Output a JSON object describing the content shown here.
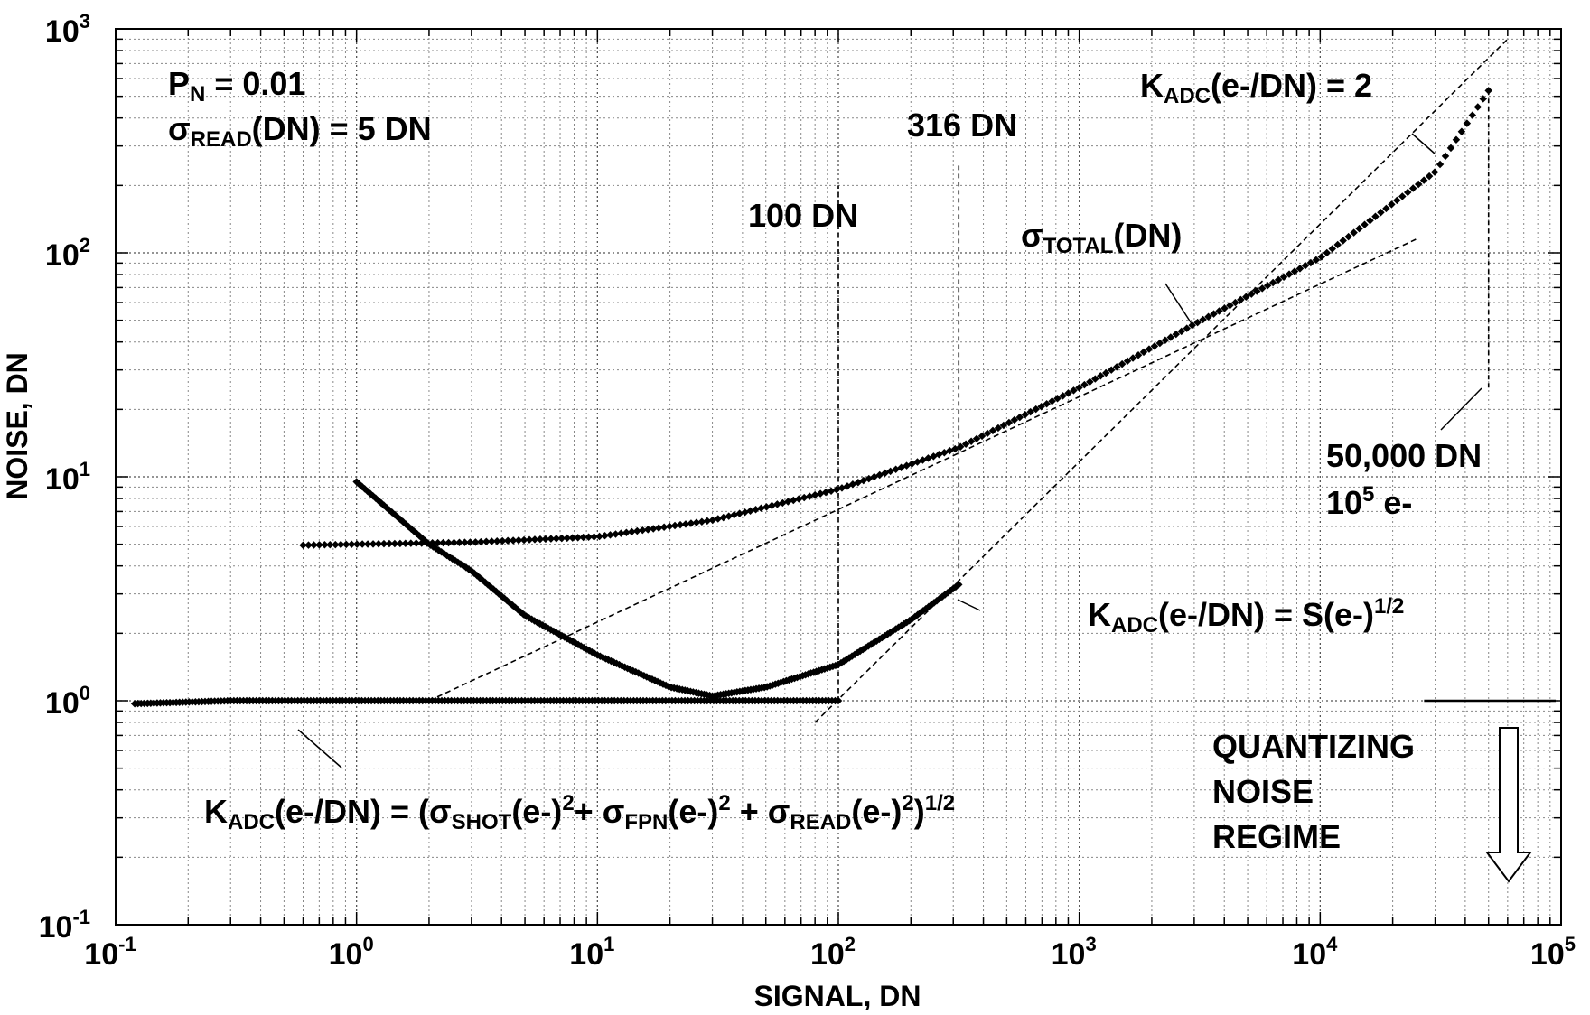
{
  "chart_data": {
    "type": "scatter",
    "title": "",
    "xlabel": "SIGNAL, DN",
    "ylabel": "NOISE, DN",
    "xscale": "log",
    "yscale": "log",
    "xlim": [
      0.1,
      100000
    ],
    "ylim": [
      0.1,
      1000
    ],
    "grid": true,
    "x_ticks": [
      {
        "base": "10",
        "exp": "-1"
      },
      {
        "base": "10",
        "exp": "0"
      },
      {
        "base": "10",
        "exp": "1"
      },
      {
        "base": "10",
        "exp": "2"
      },
      {
        "base": "10",
        "exp": "3"
      },
      {
        "base": "10",
        "exp": "4"
      },
      {
        "base": "10",
        "exp": "5"
      }
    ],
    "y_ticks": [
      {
        "base": "10",
        "exp": "-1"
      },
      {
        "base": "10",
        "exp": "0"
      },
      {
        "base": "10",
        "exp": "1"
      },
      {
        "base": "10",
        "exp": "2"
      },
      {
        "base": "10",
        "exp": "3"
      }
    ],
    "series": [
      {
        "kind": "points",
        "points": [
          [
            0.12,
            0.97
          ],
          [
            0.3,
            1.0
          ],
          [
            1,
            1.0
          ],
          [
            2,
            1.0
          ],
          [
            10,
            1.0
          ],
          [
            30,
            1.0
          ],
          [
            100,
            1.0
          ]
        ]
      },
      {
        "kind": "points",
        "points": [
          [
            0.6,
            4.95
          ],
          [
            1,
            5.0
          ],
          [
            3,
            5.1
          ],
          [
            10,
            5.4
          ],
          [
            30,
            6.4
          ],
          [
            100,
            8.8
          ],
          [
            316,
            13.5
          ],
          [
            1000,
            25
          ],
          [
            3000,
            48
          ],
          [
            10000,
            95
          ],
          [
            30000,
            230
          ],
          [
            50000,
            530
          ]
        ]
      },
      {
        "kind": "points",
        "points": [
          [
            1,
            9.5
          ],
          [
            2,
            5
          ],
          [
            3,
            3.8
          ],
          [
            5,
            2.4
          ],
          [
            10,
            1.6
          ],
          [
            20,
            1.15
          ],
          [
            30,
            1.05
          ],
          [
            50,
            1.15
          ],
          [
            100,
            1.45
          ],
          [
            200,
            2.3
          ],
          [
            316,
            3.3
          ]
        ]
      }
    ],
    "reference_lines": [
      {
        "from": [
          2,
          1.0
        ],
        "to": [
          25000,
          115
        ]
      },
      {
        "from": [
          80,
          0.8
        ],
        "to": [
          60000,
          900
        ]
      }
    ],
    "markers": [
      {
        "x": 100,
        "y_from": 1.0,
        "y_to": 200
      },
      {
        "x": 316,
        "y_from": 3.3,
        "y_to": 250
      },
      {
        "x": 50000,
        "y_from": 25,
        "y_to": 530
      }
    ],
    "quantizing_level": {
      "y": 1.0,
      "x_from": 27000,
      "x_to": 95000
    },
    "annotations": {
      "pn": {
        "main": "P",
        "sub": "N",
        "rest": " = 0.01"
      },
      "sigma_read": {
        "sym": "σ",
        "sub": "READ",
        "rest": "(DN) = 5 DN"
      },
      "dn316": "316 DN",
      "dn100": "100 DN",
      "k2": {
        "main": "K",
        "sub": "ADC",
        "rest": "(e-/DN) = 2"
      },
      "sigma_total": {
        "sym": "σ",
        "sub": "TOTAL",
        "rest": "(DN)"
      },
      "dn50000": "50,000 DN",
      "e105": {
        "base": "10",
        "sup": "5",
        "rest": " e-"
      },
      "ksqrt": {
        "main": "K",
        "sub": "ADC",
        "rest": "(e-/DN) = S(e-)",
        "sup": "1/2"
      },
      "keq": {
        "k": "K",
        "k_sub": "ADC",
        "p1": "(e-/DN) = (",
        "s1": "σ",
        "s1_sub": "SHOT",
        "p2": "(e-)",
        "sup2": "2",
        "p3": "+ ",
        "s2": "σ",
        "s2_sub": "FPN",
        "p4": "(e-)",
        "sup4": "2",
        "p5": " + ",
        "s3": "σ",
        "s3_sub": "READ",
        "p6": "(e-)",
        "sup6": "2",
        "p7": ")",
        "sup7": "1/2"
      },
      "quantizing": [
        "QUANTIZING",
        "NOISE",
        "REGIME"
      ]
    }
  }
}
